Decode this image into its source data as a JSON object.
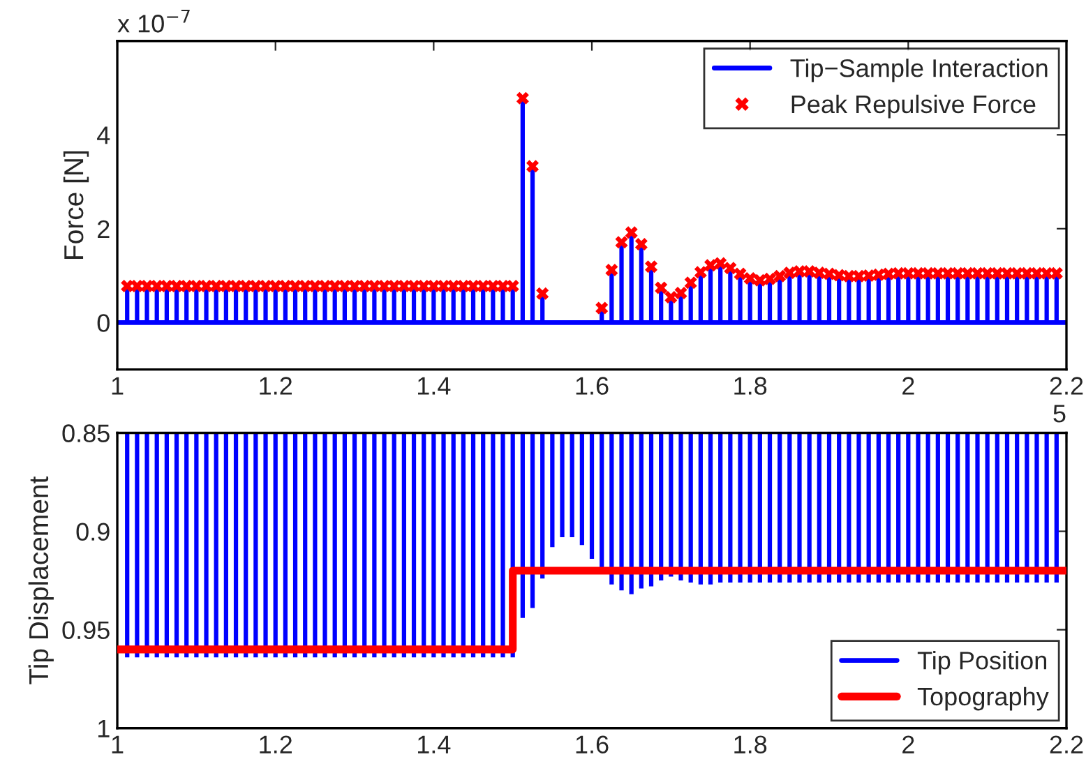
{
  "chart_data": [
    {
      "type": "bar",
      "ylabel": "Force [N]",
      "xlim": [
        1,
        2.2
      ],
      "xticks": [
        1,
        1.2,
        1.4,
        1.6,
        1.8,
        2,
        2.2
      ],
      "ylim": [
        -1,
        6
      ],
      "yticks": [
        0,
        2,
        4
      ],
      "grid": false,
      "legend": "top right",
      "annotations": [
        "x 10$^{−7}$",
        "5"
      ],
      "ref_lines": [
        {
          "axis": "y",
          "value": 0,
          "color": "#0000ff"
        }
      ],
      "series": [
        {
          "name": "Tip−Sample Interaction",
          "color": "#0000ff",
          "x": [
            1.0125,
            1.025,
            1.0375,
            1.05,
            1.0625,
            1.075,
            1.0875,
            1.1,
            1.1125,
            1.125,
            1.1375,
            1.15,
            1.1625,
            1.175,
            1.1875,
            1.2,
            1.2125,
            1.225,
            1.2375,
            1.25,
            1.2625,
            1.275,
            1.2875,
            1.3,
            1.3125,
            1.325,
            1.3375,
            1.35,
            1.3625,
            1.375,
            1.3875,
            1.4,
            1.4125,
            1.425,
            1.4375,
            1.45,
            1.4625,
            1.475,
            1.4875,
            1.5,
            1.5125,
            1.525,
            1.5375,
            1.6125,
            1.625,
            1.6375,
            1.65,
            1.6625,
            1.675,
            1.6875,
            1.7,
            1.7125,
            1.725,
            1.7375,
            1.75,
            1.7625,
            1.775,
            1.7875,
            1.8,
            1.8125,
            1.825,
            1.8375,
            1.85,
            1.8625,
            1.875,
            1.8875,
            1.9,
            1.9125,
            1.925,
            1.9375,
            1.95,
            1.9625,
            1.975,
            1.9875,
            2.0,
            2.0125,
            2.025,
            2.0375,
            2.05,
            2.0625,
            2.075,
            2.0875,
            2.1,
            2.1125,
            2.125,
            2.1375,
            2.15,
            2.1625,
            2.175,
            2.1875
          ],
          "values": [
            0.78,
            0.78,
            0.78,
            0.78,
            0.78,
            0.78,
            0.78,
            0.78,
            0.78,
            0.78,
            0.78,
            0.78,
            0.78,
            0.78,
            0.78,
            0.78,
            0.78,
            0.78,
            0.78,
            0.78,
            0.78,
            0.78,
            0.78,
            0.78,
            0.78,
            0.78,
            0.78,
            0.78,
            0.78,
            0.78,
            0.78,
            0.78,
            0.78,
            0.78,
            0.78,
            0.78,
            0.78,
            0.78,
            0.78,
            0.78,
            4.78,
            3.33,
            0.62,
            0.31,
            1.12,
            1.71,
            1.92,
            1.67,
            1.19,
            0.74,
            0.54,
            0.63,
            0.85,
            1.07,
            1.22,
            1.26,
            1.16,
            1.04,
            0.94,
            0.9,
            0.93,
            0.99,
            1.06,
            1.09,
            1.09,
            1.06,
            1.04,
            1.01,
            0.99,
            0.99,
            1.0,
            1.02,
            1.04,
            1.05,
            1.05,
            1.05,
            1.05,
            1.05,
            1.05,
            1.05,
            1.05,
            1.05,
            1.05,
            1.05,
            1.05,
            1.05,
            1.05,
            1.05,
            1.05,
            1.05
          ]
        },
        {
          "name": "Peak Repulsive Force",
          "type": "scatter",
          "marker": "cross",
          "color": "#ff0000",
          "x": [
            1.0125,
            1.025,
            1.0375,
            1.05,
            1.0625,
            1.075,
            1.0875,
            1.1,
            1.1125,
            1.125,
            1.1375,
            1.15,
            1.1625,
            1.175,
            1.1875,
            1.2,
            1.2125,
            1.225,
            1.2375,
            1.25,
            1.2625,
            1.275,
            1.2875,
            1.3,
            1.3125,
            1.325,
            1.3375,
            1.35,
            1.3625,
            1.375,
            1.3875,
            1.4,
            1.4125,
            1.425,
            1.4375,
            1.45,
            1.4625,
            1.475,
            1.4875,
            1.5,
            1.5125,
            1.525,
            1.5375,
            1.6125,
            1.625,
            1.6375,
            1.65,
            1.6625,
            1.675,
            1.6875,
            1.7,
            1.7125,
            1.725,
            1.7375,
            1.75,
            1.7625,
            1.775,
            1.7875,
            1.8,
            1.8125,
            1.825,
            1.8375,
            1.85,
            1.8625,
            1.875,
            1.8875,
            1.9,
            1.9125,
            1.925,
            1.9375,
            1.95,
            1.9625,
            1.975,
            1.9875,
            2.0,
            2.0125,
            2.025,
            2.0375,
            2.05,
            2.0625,
            2.075,
            2.0875,
            2.1,
            2.1125,
            2.125,
            2.1375,
            2.15,
            2.1625,
            2.175,
            2.1875
          ],
          "values": [
            0.78,
            0.78,
            0.78,
            0.78,
            0.78,
            0.78,
            0.78,
            0.78,
            0.78,
            0.78,
            0.78,
            0.78,
            0.78,
            0.78,
            0.78,
            0.78,
            0.78,
            0.78,
            0.78,
            0.78,
            0.78,
            0.78,
            0.78,
            0.78,
            0.78,
            0.78,
            0.78,
            0.78,
            0.78,
            0.78,
            0.78,
            0.78,
            0.78,
            0.78,
            0.78,
            0.78,
            0.78,
            0.78,
            0.78,
            0.78,
            4.78,
            3.33,
            0.62,
            0.31,
            1.12,
            1.71,
            1.92,
            1.67,
            1.19,
            0.74,
            0.54,
            0.63,
            0.85,
            1.07,
            1.22,
            1.26,
            1.16,
            1.04,
            0.94,
            0.9,
            0.93,
            0.99,
            1.06,
            1.09,
            1.09,
            1.06,
            1.04,
            1.01,
            0.99,
            0.99,
            1.0,
            1.02,
            1.04,
            1.05,
            1.05,
            1.05,
            1.05,
            1.05,
            1.05,
            1.05,
            1.05,
            1.05,
            1.05,
            1.05,
            1.05,
            1.05,
            1.05,
            1.05,
            1.05,
            1.05
          ]
        }
      ]
    },
    {
      "type": "bar",
      "ylabel": "Tip Displacement",
      "xlim": [
        1,
        2.2
      ],
      "xticks": [
        1,
        1.2,
        1.4,
        1.6,
        1.8,
        2,
        2.2
      ],
      "ylim": [
        1,
        0.85
      ],
      "yticks": [
        0.85,
        0.9,
        0.95,
        1
      ],
      "grid": false,
      "legend": "bottom right",
      "series": [
        {
          "name": "Tip Position",
          "color": "#0000ff",
          "x": [
            1.0125,
            1.025,
            1.0375,
            1.05,
            1.0625,
            1.075,
            1.0875,
            1.1,
            1.1125,
            1.125,
            1.1375,
            1.15,
            1.1625,
            1.175,
            1.1875,
            1.2,
            1.2125,
            1.225,
            1.2375,
            1.25,
            1.2625,
            1.275,
            1.2875,
            1.3,
            1.3125,
            1.325,
            1.3375,
            1.35,
            1.3625,
            1.375,
            1.3875,
            1.4,
            1.4125,
            1.425,
            1.4375,
            1.45,
            1.4625,
            1.475,
            1.4875,
            1.5,
            1.5125,
            1.525,
            1.5375,
            1.55,
            1.5625,
            1.575,
            1.5875,
            1.6,
            1.6125,
            1.625,
            1.6375,
            1.65,
            1.6625,
            1.675,
            1.6875,
            1.7,
            1.7125,
            1.725,
            1.7375,
            1.75,
            1.7625,
            1.775,
            1.7875,
            1.8,
            1.8125,
            1.825,
            1.8375,
            1.85,
            1.8625,
            1.875,
            1.8875,
            1.9,
            1.9125,
            1.925,
            1.9375,
            1.95,
            1.9625,
            1.975,
            1.9875,
            2.0,
            2.0125,
            2.025,
            2.0375,
            2.05,
            2.0625,
            2.075,
            2.0875,
            2.1,
            2.1125,
            2.125,
            2.1375,
            2.15,
            2.1625,
            2.175,
            2.1875
          ],
          "base": [
            0.85,
            0.85,
            0.85,
            0.85,
            0.85,
            0.85,
            0.85,
            0.85,
            0.85,
            0.85,
            0.85,
            0.85,
            0.85,
            0.85,
            0.85,
            0.85,
            0.85,
            0.85,
            0.85,
            0.85,
            0.85,
            0.85,
            0.85,
            0.85,
            0.85,
            0.85,
            0.85,
            0.85,
            0.85,
            0.85,
            0.85,
            0.85,
            0.85,
            0.85,
            0.85,
            0.85,
            0.85,
            0.85,
            0.85,
            0.85,
            0.85,
            0.85,
            0.85,
            0.85,
            0.85,
            0.85,
            0.85,
            0.85,
            0.85,
            0.85,
            0.85,
            0.85,
            0.85,
            0.85,
            0.85,
            0.85,
            0.85,
            0.85,
            0.85,
            0.85,
            0.85,
            0.85,
            0.85,
            0.85,
            0.85,
            0.85,
            0.85,
            0.85,
            0.85,
            0.85,
            0.85,
            0.85,
            0.85,
            0.85,
            0.85,
            0.85,
            0.85,
            0.85,
            0.85,
            0.85,
            0.85,
            0.85,
            0.85,
            0.85,
            0.85,
            0.85,
            0.85,
            0.85,
            0.85,
            0.85,
            0.85,
            0.85,
            0.85,
            0.85,
            0.85
          ],
          "values": [
            0.114,
            0.114,
            0.114,
            0.114,
            0.114,
            0.114,
            0.114,
            0.114,
            0.114,
            0.114,
            0.114,
            0.114,
            0.114,
            0.114,
            0.114,
            0.114,
            0.114,
            0.114,
            0.114,
            0.114,
            0.114,
            0.114,
            0.114,
            0.114,
            0.114,
            0.114,
            0.114,
            0.114,
            0.114,
            0.114,
            0.114,
            0.114,
            0.114,
            0.114,
            0.114,
            0.114,
            0.114,
            0.114,
            0.114,
            0.114,
            0.094,
            0.089,
            0.074,
            0.058,
            0.053,
            0.053,
            0.057,
            0.064,
            0.069,
            0.077,
            0.08,
            0.082,
            0.079,
            0.078,
            0.075,
            0.073,
            0.075,
            0.076,
            0.077,
            0.077,
            0.076,
            0.076,
            0.076,
            0.076,
            0.076,
            0.076,
            0.076,
            0.076,
            0.076,
            0.076,
            0.076,
            0.076,
            0.076,
            0.076,
            0.076,
            0.076,
            0.076,
            0.076,
            0.076,
            0.076,
            0.076,
            0.076,
            0.076,
            0.076,
            0.076,
            0.076,
            0.076,
            0.076,
            0.076,
            0.076,
            0.076,
            0.076,
            0.076,
            0.076,
            0.076
          ]
        },
        {
          "name": "Topography",
          "type": "line",
          "color": "#ff0000",
          "x": [
            1,
            1.5,
            1.5,
            2.2
          ],
          "values": [
            0.96,
            0.96,
            0.92,
            0.92
          ]
        }
      ]
    }
  ]
}
